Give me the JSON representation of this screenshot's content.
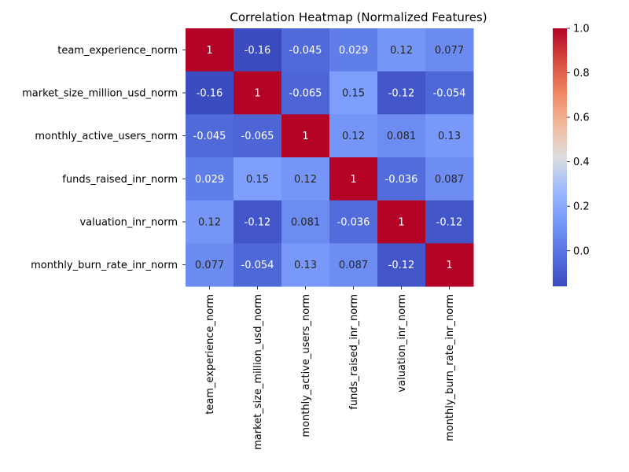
{
  "chart_data": {
    "type": "heatmap",
    "title": "Correlation Heatmap (Normalized Features)",
    "row_labels": [
      "team_experience_norm",
      "market_size_million_usd_norm",
      "monthly_active_users_norm",
      "funds_raised_inr_norm",
      "valuation_inr_norm",
      "monthly_burn_rate_inr_norm"
    ],
    "col_labels": [
      "team_experience_norm",
      "market_size_million_usd_norm",
      "monthly_active_users_norm",
      "funds_raised_inr_norm",
      "valuation_inr_norm",
      "monthly_burn_rate_inr_norm"
    ],
    "values": [
      [
        1,
        -0.16,
        -0.045,
        0.029,
        0.12,
        0.077
      ],
      [
        -0.16,
        1,
        -0.065,
        0.15,
        -0.12,
        -0.054
      ],
      [
        -0.045,
        -0.065,
        1,
        0.12,
        0.081,
        0.13
      ],
      [
        0.029,
        0.15,
        0.12,
        1,
        -0.036,
        0.087
      ],
      [
        0.12,
        -0.12,
        0.081,
        -0.036,
        1,
        -0.12
      ],
      [
        0.077,
        -0.054,
        0.13,
        0.087,
        -0.12,
        1
      ]
    ],
    "cell_labels": [
      [
        "1",
        "-0.16",
        "-0.045",
        "0.029",
        "0.12",
        "0.077"
      ],
      [
        "-0.16",
        "1",
        "-0.065",
        "0.15",
        "-0.12",
        "-0.054"
      ],
      [
        "-0.045",
        "-0.065",
        "1",
        "0.12",
        "0.081",
        "0.13"
      ],
      [
        "0.029",
        "0.15",
        "0.12",
        "1",
        "-0.036",
        "0.087"
      ],
      [
        "0.12",
        "-0.12",
        "0.081",
        "-0.036",
        "1",
        "-0.12"
      ],
      [
        "0.077",
        "-0.054",
        "0.13",
        "0.087",
        "-0.12",
        "1"
      ]
    ],
    "colormap": "coolwarm",
    "color_range": [
      -0.16,
      1.0
    ],
    "colorbar_ticks": [
      1.0,
      0.8,
      0.6,
      0.4,
      0.2,
      0.0
    ],
    "colorbar_tick_labels": [
      "1.0",
      "0.8",
      "0.6",
      "0.4",
      "0.2",
      "0.0"
    ],
    "colors": {
      "low": "#3b4cc0",
      "mid": "#dddddd",
      "high": "#b40426"
    }
  }
}
